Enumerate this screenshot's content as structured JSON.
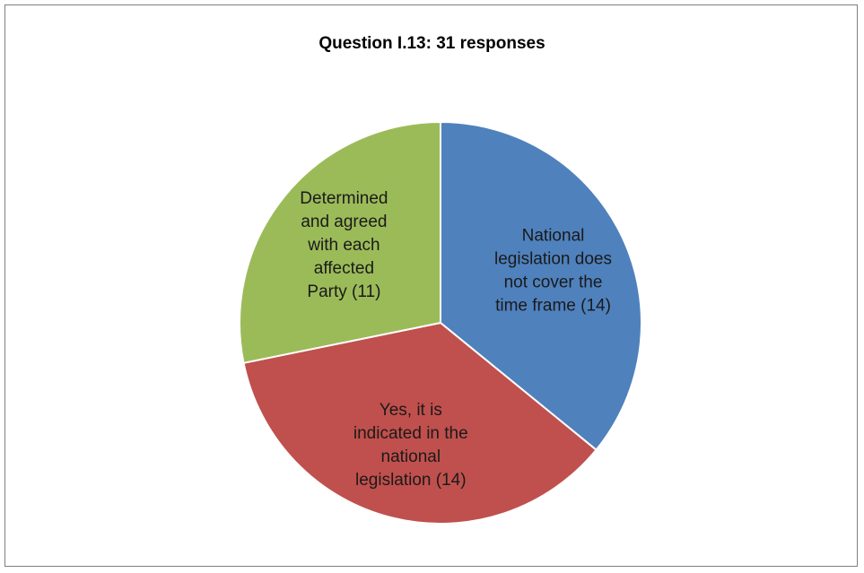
{
  "chart_data": {
    "type": "pie",
    "title": "Question I.13: 31 responses",
    "start_angle_deg": 0,
    "direction": "clockwise",
    "slices": [
      {
        "key": "not-covered",
        "label_lines": [
          "National",
          "legislation does",
          "not cover the",
          "time frame (14)"
        ],
        "value": 14,
        "color": "#4f81bd"
      },
      {
        "key": "indicated",
        "label_lines": [
          "Yes, it is",
          "indicated in the",
          "national",
          "legislation (14)"
        ],
        "value": 14,
        "color": "#c0504d"
      },
      {
        "key": "agreed",
        "label_lines": [
          "Determined",
          "and agreed",
          "with each",
          "affected",
          "Party (11)"
        ],
        "value": 11,
        "color": "#9bbb59"
      }
    ],
    "legend": "none"
  }
}
